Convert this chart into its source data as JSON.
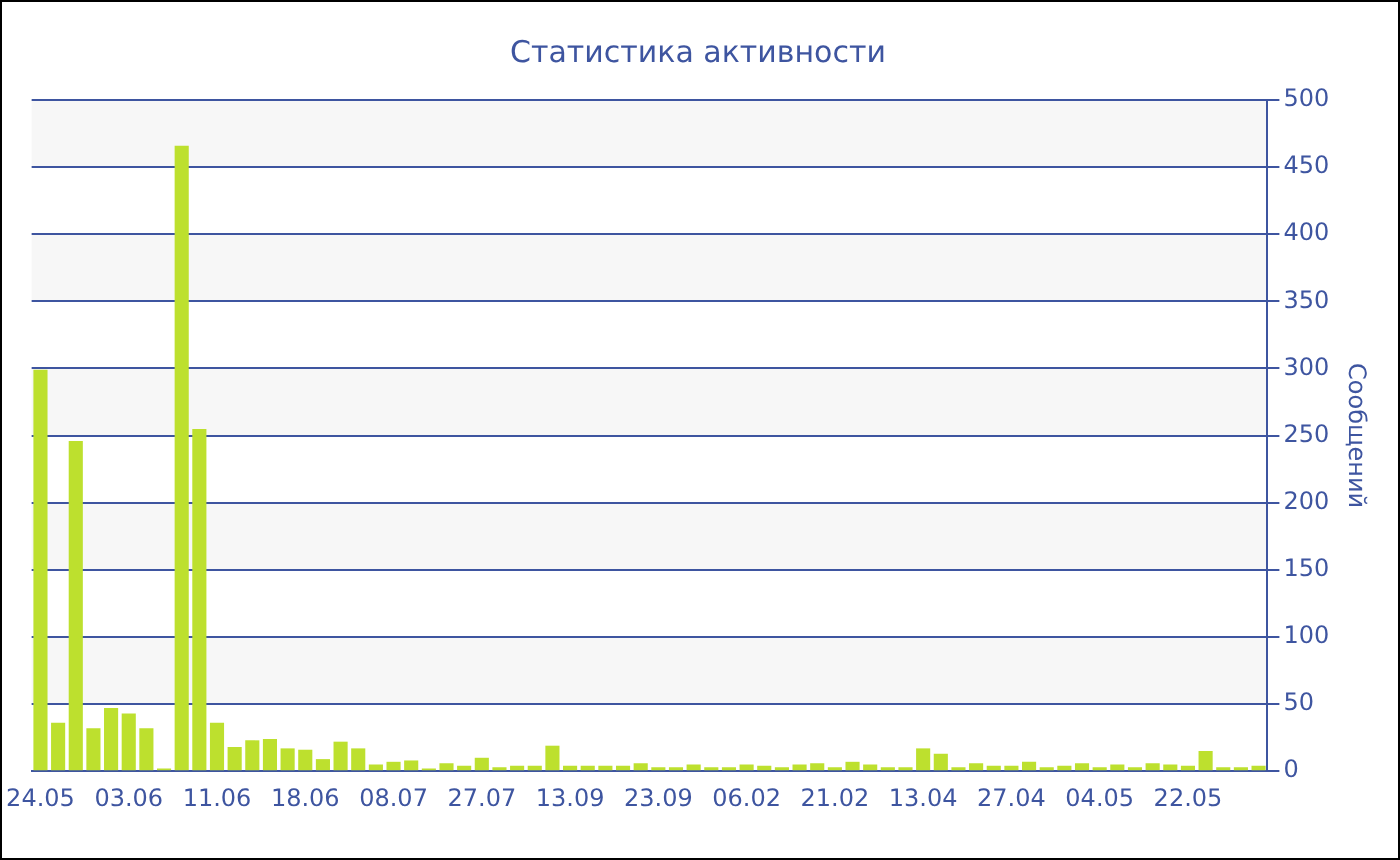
{
  "chart_data": {
    "type": "bar",
    "title": "Статистика активности",
    "ylabel": "Сообщений",
    "categories": [
      "24.05",
      null,
      null,
      null,
      null,
      "03.06",
      null,
      null,
      null,
      null,
      "11.06",
      null,
      null,
      null,
      null,
      "18.06",
      null,
      null,
      null,
      null,
      "08.07",
      null,
      null,
      null,
      null,
      "27.07",
      null,
      null,
      null,
      null,
      "13.09",
      null,
      null,
      null,
      null,
      "23.09",
      null,
      null,
      null,
      null,
      "06.02",
      null,
      null,
      null,
      null,
      "21.02",
      null,
      null,
      null,
      null,
      "13.04",
      null,
      null,
      null,
      null,
      "27.04",
      null,
      null,
      null,
      null,
      "04.05",
      null,
      null,
      null,
      null,
      "22.05",
      null,
      null,
      null,
      null
    ],
    "values": [
      299,
      36,
      246,
      32,
      47,
      43,
      32,
      2,
      466,
      255,
      36,
      18,
      23,
      24,
      17,
      16,
      9,
      22,
      17,
      5,
      7,
      8,
      2,
      6,
      4,
      10,
      3,
      4,
      4,
      19,
      4,
      4,
      4,
      4,
      6,
      3,
      3,
      5,
      3,
      3,
      5,
      4,
      3,
      5,
      6,
      3,
      7,
      5,
      3,
      3,
      17,
      13,
      3,
      6,
      4,
      4,
      7,
      3,
      4,
      6,
      3,
      5,
      3,
      6,
      5,
      4,
      15,
      3,
      3,
      4
    ],
    "color": "#bde02e",
    "ylim": [
      0,
      500
    ],
    "yticks": [
      0,
      50,
      100,
      150,
      200,
      250,
      300,
      350,
      400,
      450,
      500
    ],
    "grid": "y",
    "legend": false
  }
}
